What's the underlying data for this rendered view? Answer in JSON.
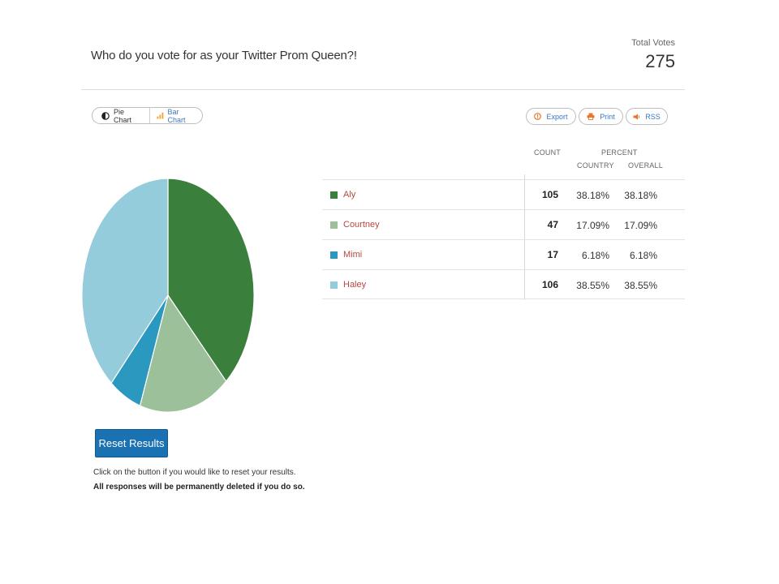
{
  "poll": {
    "question": "Who do you vote for as your Twitter Prom Queen?!",
    "total_label": "Total Votes",
    "total_value": "275"
  },
  "view_toggle": {
    "pie_label": "Pie Chart",
    "bar_label": "Bar Chart",
    "selected": "Pie Chart"
  },
  "actions": {
    "export_label": "Export",
    "print_label": "Print",
    "rss_label": "RSS"
  },
  "table": {
    "count_header": "COUNT",
    "percent_header": "PERCENT",
    "country_header": "COUNTRY",
    "overall_header": "OVERALL",
    "rows": [
      {
        "name": "Aly",
        "count": "105",
        "country": "38.18%",
        "overall": "38.18%",
        "color": "#3a7f3c"
      },
      {
        "name": "Courtney",
        "count": "47",
        "country": "17.09%",
        "overall": "17.09%",
        "color": "#9cc19a"
      },
      {
        "name": "Mimi",
        "count": "17",
        "country": "6.18%",
        "overall": "6.18%",
        "color": "#2a98bf"
      },
      {
        "name": "Haley",
        "count": "106",
        "country": "38.55%",
        "overall": "38.55%",
        "color": "#95ccdc"
      }
    ]
  },
  "chart_data": {
    "type": "pie",
    "categories": [
      "Aly",
      "Courtney",
      "Mimi",
      "Haley"
    ],
    "values": [
      105,
      47,
      17,
      106
    ],
    "colors": [
      "#3a7f3c",
      "#9cc19a",
      "#2a98bf",
      "#95ccdc"
    ]
  },
  "reset": {
    "button_label": "Reset Results",
    "note": "Click on the button if you would like to reset your results.",
    "warning": "All responses will be permanently deleted if you do so."
  },
  "icons": {
    "pie_toggle": "half-circle-icon",
    "bar_toggle": "bar-chart-icon",
    "export": "export-circle-icon",
    "print": "printer-icon",
    "rss": "rss-icon"
  }
}
